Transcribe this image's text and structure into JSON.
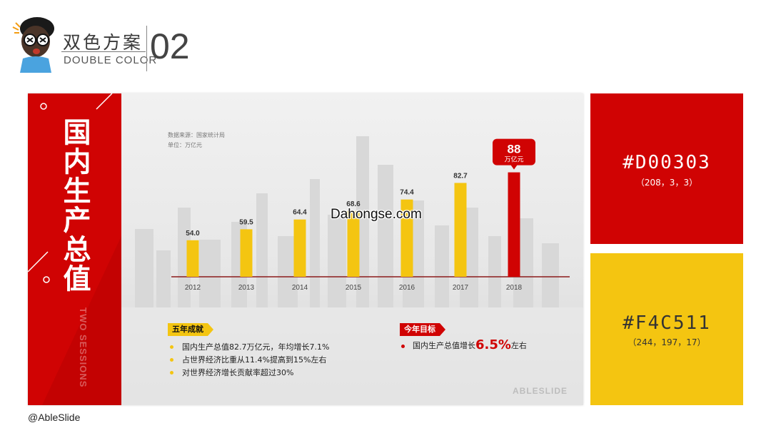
{
  "header": {
    "title_cn": "双色方案",
    "title_en": "DOUBLE COLOR",
    "number": "02"
  },
  "slide": {
    "strip_title": "国内生产总值",
    "strip_subtitle_1": "TWO",
    "strip_subtitle_2": "SESSIONS",
    "source_line": "数据来源：国家统计局",
    "unit_line": "单位：万亿元",
    "achievements_tag": "五年成就",
    "achievements": [
      "国内生产总值82.7万亿元，年均增长7.1%",
      "占世界经济比重从11.4%提高到15%左右",
      "对世界经济增长贡献率超过30%"
    ],
    "goal_tag": "今年目标",
    "goal_prefix": "国内生产总值增长",
    "goal_value": "6.5%",
    "goal_suffix": "左右",
    "brand": "ABLESLIDE"
  },
  "chart_data": {
    "type": "bar",
    "categories": [
      "2012",
      "2013",
      "2014",
      "2015",
      "2016",
      "2017",
      "2018"
    ],
    "values": [
      54.0,
      59.5,
      64.4,
      68.6,
      74.4,
      82.7,
      88
    ],
    "value_labels": [
      "54.0",
      "59.5",
      "64.4",
      "68.6",
      "74.4",
      "82.7",
      "88"
    ],
    "highlight_index": 6,
    "highlight_unit": "万亿元",
    "colors": {
      "normal": "#F4C511",
      "highlight": "#D00303"
    },
    "title": "",
    "xlabel": "",
    "ylabel": ""
  },
  "watermark": "Dahongse.com",
  "swatches": [
    {
      "hex": "#D00303",
      "rgb": "（208，3，3）"
    },
    {
      "hex": "#F4C511",
      "rgb": "（244，197，17）"
    }
  ],
  "credit": "@AbleSlide"
}
